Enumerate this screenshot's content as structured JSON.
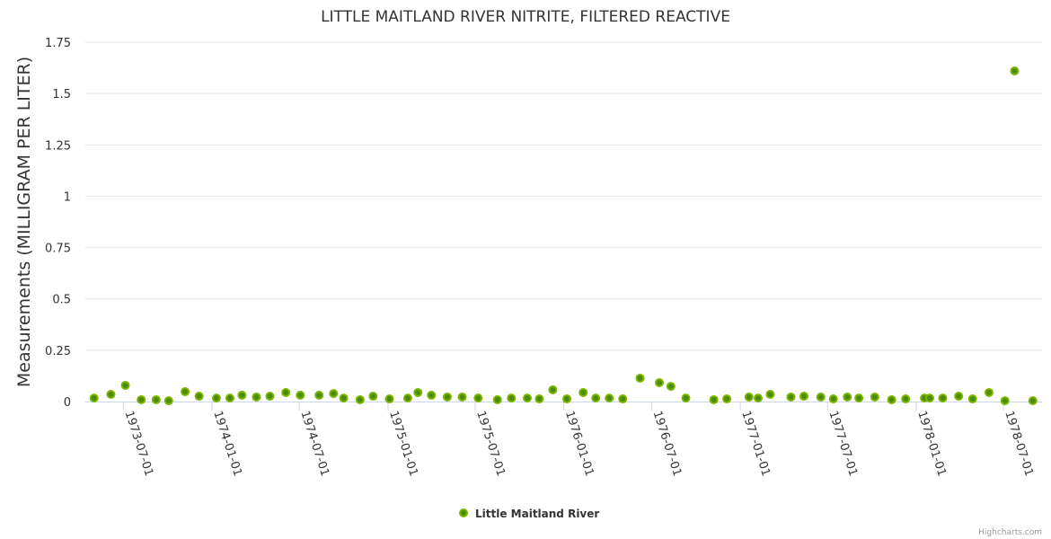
{
  "chart_data": {
    "type": "scatter",
    "title": "LITTLE MAITLAND RIVER NITRITE, FILTERED REACTIVE",
    "xlabel": "",
    "ylabel": "Measurements (MILLIGRAM PER LITER)",
    "ylim": [
      0,
      1.75
    ],
    "xlim": [
      "1973-04-13",
      "1978-09-19"
    ],
    "yticks": [
      "0",
      "0.25",
      "0.5",
      "0.75",
      "1",
      "1.25",
      "1.5",
      "1.75"
    ],
    "ytick_values": [
      0,
      0.25,
      0.5,
      0.75,
      1,
      1.25,
      1.5,
      1.75
    ],
    "xticks": [
      "1973-07-01",
      "1974-01-01",
      "1974-07-01",
      "1975-01-01",
      "1975-07-01",
      "1976-01-01",
      "1976-07-01",
      "1977-01-01",
      "1977-07-01",
      "1978-01-01",
      "1978-07-01"
    ],
    "grid": true,
    "legend_position": "bottom-center",
    "series": [
      {
        "name": "Little Maitland River",
        "color": "#7cb500",
        "points": [
          [
            "1973-05-01",
            0.017
          ],
          [
            "1973-06-05",
            0.035
          ],
          [
            "1973-07-05",
            0.079
          ],
          [
            "1973-08-07",
            0.009
          ],
          [
            "1973-09-07",
            0.009
          ],
          [
            "1973-10-03",
            0.004
          ],
          [
            "1973-11-06",
            0.048
          ],
          [
            "1973-12-05",
            0.026
          ],
          [
            "1974-01-10",
            0.017
          ],
          [
            "1974-02-07",
            0.017
          ],
          [
            "1974-03-04",
            0.031
          ],
          [
            "1974-04-03",
            0.022
          ],
          [
            "1974-05-01",
            0.026
          ],
          [
            "1974-06-03",
            0.044
          ],
          [
            "1974-07-03",
            0.031
          ],
          [
            "1974-08-11",
            0.031
          ],
          [
            "1974-09-10",
            0.039
          ],
          [
            "1974-10-01",
            0.017
          ],
          [
            "1974-11-04",
            0.009
          ],
          [
            "1974-12-01",
            0.026
          ],
          [
            "1975-01-04",
            0.013
          ],
          [
            "1975-02-11",
            0.017
          ],
          [
            "1975-03-04",
            0.044
          ],
          [
            "1975-04-01",
            0.031
          ],
          [
            "1975-05-04",
            0.022
          ],
          [
            "1975-06-04",
            0.022
          ],
          [
            "1975-07-07",
            0.017
          ],
          [
            "1975-08-16",
            0.009
          ],
          [
            "1975-09-14",
            0.017
          ],
          [
            "1975-10-17",
            0.017
          ],
          [
            "1975-11-11",
            0.013
          ],
          [
            "1975-12-09",
            0.057
          ],
          [
            "1976-01-07",
            0.013
          ],
          [
            "1976-02-10",
            0.044
          ],
          [
            "1976-03-07",
            0.017
          ],
          [
            "1976-04-04",
            0.017
          ],
          [
            "1976-05-02",
            0.013
          ],
          [
            "1976-06-07",
            0.114
          ],
          [
            "1976-07-17",
            0.092
          ],
          [
            "1976-08-10",
            0.074
          ],
          [
            "1976-09-10",
            0.017
          ],
          [
            "1976-11-07",
            0.009
          ],
          [
            "1976-12-04",
            0.013
          ],
          [
            "1977-01-19",
            0.022
          ],
          [
            "1977-02-07",
            0.017
          ],
          [
            "1977-03-04",
            0.035
          ],
          [
            "1977-04-16",
            0.022
          ],
          [
            "1977-05-13",
            0.026
          ],
          [
            "1977-06-17",
            0.022
          ],
          [
            "1977-07-13",
            0.013
          ],
          [
            "1977-08-11",
            0.022
          ],
          [
            "1977-09-04",
            0.017
          ],
          [
            "1977-10-07",
            0.022
          ],
          [
            "1977-11-11",
            0.009
          ],
          [
            "1977-12-10",
            0.013
          ],
          [
            "1978-01-18",
            0.017
          ],
          [
            "1978-01-29",
            0.017
          ],
          [
            "1978-02-25",
            0.017
          ],
          [
            "1978-03-30",
            0.026
          ],
          [
            "1978-04-28",
            0.013
          ],
          [
            "1978-06-01",
            0.044
          ],
          [
            "1978-07-04",
            0.004
          ],
          [
            "1978-07-24",
            1.61
          ],
          [
            "1978-08-31",
            0.004
          ]
        ]
      }
    ]
  },
  "credit": "Highcharts.com"
}
